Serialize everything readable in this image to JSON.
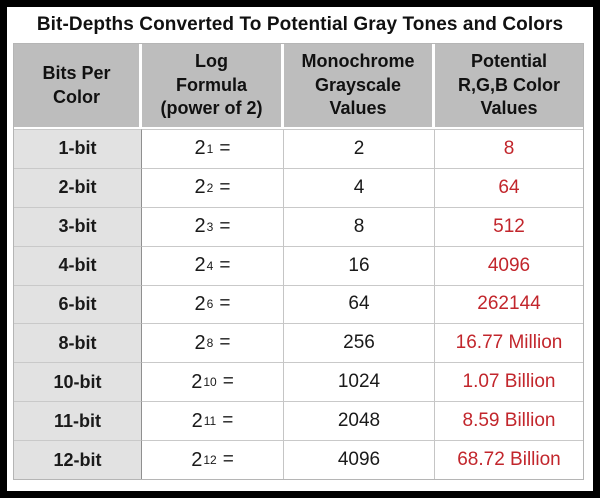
{
  "chart_data": {
    "type": "table",
    "title": "Bit-Depths Converted To Potential Gray Tones and Colors",
    "formula_suffix": "=",
    "columns": [
      {
        "key": "bits",
        "label": "Bits Per Color",
        "lines": [
          "Bits Per",
          "Color"
        ]
      },
      {
        "key": "formula",
        "label": "Log Formula (power of 2)",
        "lines": [
          "Log",
          "Formula",
          "(power of 2)"
        ]
      },
      {
        "key": "grayscale",
        "label": "Monochrome Grayscale Values",
        "lines": [
          "Monochrome",
          "Grayscale",
          "Values"
        ]
      },
      {
        "key": "rgb",
        "label": "Potential R,G,B Color Values",
        "lines": [
          "Potential",
          "R,G,B Color",
          "Values"
        ]
      }
    ],
    "rows": [
      {
        "bits_per_color": "1-bit",
        "formula_base": "2",
        "formula_exponent": "1",
        "grayscale": "2",
        "rgb": "8"
      },
      {
        "bits_per_color": "2-bit",
        "formula_base": "2",
        "formula_exponent": "2",
        "grayscale": "4",
        "rgb": "64"
      },
      {
        "bits_per_color": "3-bit",
        "formula_base": "2",
        "formula_exponent": "3",
        "grayscale": "8",
        "rgb": "512"
      },
      {
        "bits_per_color": "4-bit",
        "formula_base": "2",
        "formula_exponent": "4",
        "grayscale": "16",
        "rgb": "4096"
      },
      {
        "bits_per_color": "6-bit",
        "formula_base": "2",
        "formula_exponent": "6",
        "grayscale": "64",
        "rgb": "262144"
      },
      {
        "bits_per_color": "8-bit",
        "formula_base": "2",
        "formula_exponent": "8",
        "grayscale": "256",
        "rgb": "16.77 Million"
      },
      {
        "bits_per_color": "10-bit",
        "formula_base": "2",
        "formula_exponent": "10",
        "grayscale": "1024",
        "rgb": "1.07 Billion"
      },
      {
        "bits_per_color": "11-bit",
        "formula_base": "2",
        "formula_exponent": "11",
        "grayscale": "2048",
        "rgb": "8.59 Billion"
      },
      {
        "bits_per_color": "12-bit",
        "formula_base": "2",
        "formula_exponent": "12",
        "grayscale": "4096",
        "rgb": "68.72 Billion"
      }
    ]
  },
  "colors": {
    "rgb_text": "#c2262c",
    "header_bg": "#bdbdbd",
    "label_bg": "#e2e2e2",
    "frame_border": "#000000"
  }
}
